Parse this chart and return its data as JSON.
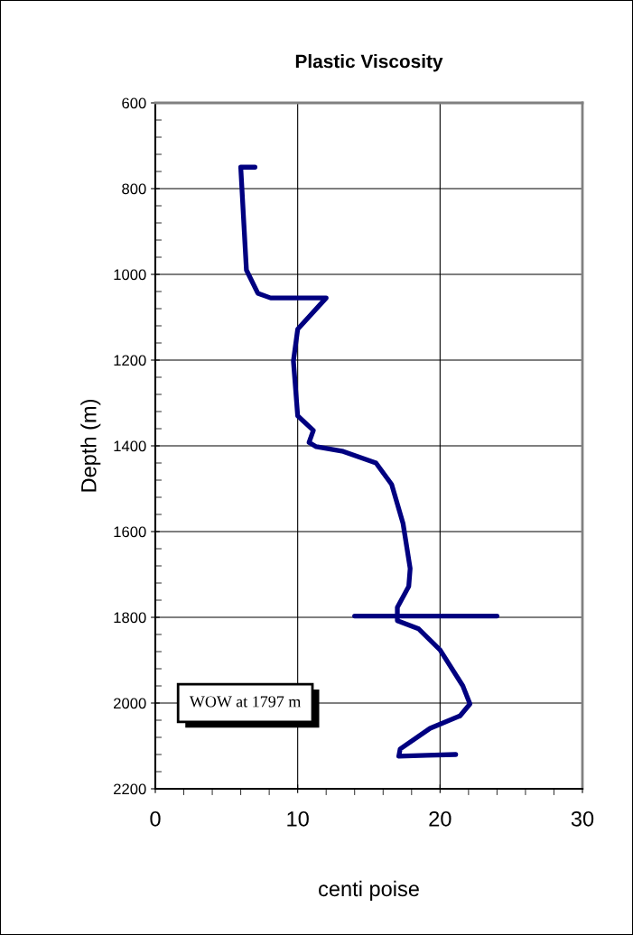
{
  "chart_data": {
    "type": "line",
    "title": "Plastic Viscosity",
    "xlabel": "centi poise",
    "ylabel": "Depth (m)",
    "xlim": [
      0,
      30
    ],
    "xticks": [
      0,
      10,
      20,
      30
    ],
    "ylim": [
      2200,
      600
    ],
    "yticks": [
      600,
      800,
      1000,
      1200,
      1400,
      1600,
      1800,
      2000,
      2200
    ],
    "grid": true,
    "series": [
      {
        "color": "#000080",
        "x": [
          7.0,
          6.0,
          6.4,
          7.2,
          8.1,
          12.0,
          10.0,
          9.7,
          10.0,
          11.1,
          10.8,
          11.3,
          13.2,
          15.5,
          16.6,
          17.4,
          17.9,
          17.8,
          17.0,
          17.0,
          18.5,
          20.0,
          21.6,
          22.1,
          21.4,
          19.3,
          17.2,
          17.1,
          19.1,
          21.1
        ],
        "values": [
          750,
          750,
          990,
          1044,
          1055,
          1055,
          1128,
          1202,
          1330,
          1364,
          1392,
          1402,
          1413,
          1440,
          1490,
          1581,
          1686,
          1728,
          1777,
          1808,
          1827,
          1876,
          1960,
          2002,
          2030,
          2059,
          2107,
          2124,
          2122,
          2120
        ]
      },
      {
        "color": "#000080",
        "x": [
          14,
          24
        ],
        "values": [
          1797,
          1797
        ]
      }
    ],
    "annotations": [
      "WOW at 1797 m"
    ]
  }
}
